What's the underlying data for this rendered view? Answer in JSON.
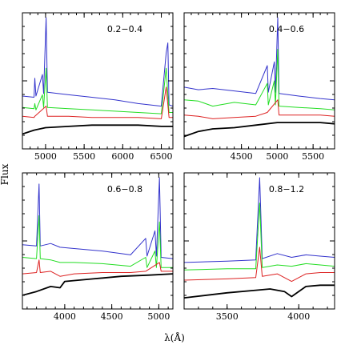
{
  "figure": {
    "ylabel": "Flux",
    "xlabel": "λ(Å)"
  },
  "chart_data": [
    {
      "type": "line",
      "label": "0.2−0.4",
      "xlim": [
        4700,
        6650
      ],
      "ylim": [
        0,
        1
      ],
      "xticks": [
        5000,
        5500,
        6000,
        6500
      ],
      "grid": false,
      "series": [
        {
          "color": "#3333cc",
          "points": [
            [
              4700,
              0.38
            ],
            [
              4850,
              0.37
            ],
            [
              4861,
              0.52
            ],
            [
              4875,
              0.38
            ],
            [
              4959,
              0.55
            ],
            [
              4975,
              0.4
            ],
            [
              5007,
              1.0
            ],
            [
              5025,
              0.41
            ],
            [
              5300,
              0.39
            ],
            [
              5600,
              0.37
            ],
            [
              5900,
              0.35
            ],
            [
              6200,
              0.32
            ],
            [
              6500,
              0.3
            ],
            [
              6563,
              0.72
            ],
            [
              6585,
              0.8
            ],
            [
              6600,
              0.31
            ],
            [
              6650,
              0.3
            ]
          ]
        },
        {
          "color": "#22dd22",
          "points": [
            [
              4700,
              0.29
            ],
            [
              4850,
              0.28
            ],
            [
              4861,
              0.32
            ],
            [
              4875,
              0.27
            ],
            [
              4959,
              0.39
            ],
            [
              4975,
              0.29
            ],
            [
              5007,
              0.6
            ],
            [
              5025,
              0.29
            ],
            [
              5300,
              0.28
            ],
            [
              5600,
              0.27
            ],
            [
              5900,
              0.26
            ],
            [
              6200,
              0.25
            ],
            [
              6500,
              0.24
            ],
            [
              6563,
              0.6
            ],
            [
              6600,
              0.25
            ],
            [
              6650,
              0.25
            ]
          ]
        },
        {
          "color": "#dd2222",
          "points": [
            [
              4700,
              0.22
            ],
            [
              4850,
              0.21
            ],
            [
              4861,
              0.22
            ],
            [
              5007,
              0.3
            ],
            [
              5025,
              0.22
            ],
            [
              5300,
              0.22
            ],
            [
              5600,
              0.21
            ],
            [
              5900,
              0.21
            ],
            [
              6200,
              0.21
            ],
            [
              6500,
              0.2
            ],
            [
              6563,
              0.45
            ],
            [
              6600,
              0.21
            ],
            [
              6650,
              0.21
            ]
          ]
        },
        {
          "color": "#000000",
          "points": [
            [
              4700,
              0.08
            ],
            [
              4850,
              0.11
            ],
            [
              5000,
              0.13
            ],
            [
              5300,
              0.14
            ],
            [
              5600,
              0.15
            ],
            [
              5900,
              0.15
            ],
            [
              6200,
              0.15
            ],
            [
              6500,
              0.14
            ],
            [
              6650,
              0.14
            ]
          ]
        }
      ]
    },
    {
      "type": "line",
      "label": "0.4−0.6",
      "xlim": [
        3700,
        5800
      ],
      "ylim": [
        0,
        1
      ],
      "xticks": [
        4500,
        5000,
        5500
      ],
      "grid": false,
      "series": [
        {
          "color": "#3333cc",
          "points": [
            [
              3700,
              0.45
            ],
            [
              3900,
              0.43
            ],
            [
              4100,
              0.44
            ],
            [
              4400,
              0.42
            ],
            [
              4700,
              0.4
            ],
            [
              4861,
              0.62
            ],
            [
              4875,
              0.41
            ],
            [
              4959,
              0.65
            ],
            [
              4975,
              0.41
            ],
            [
              5007,
              1.0
            ],
            [
              5025,
              0.4
            ],
            [
              5300,
              0.38
            ],
            [
              5600,
              0.36
            ],
            [
              5800,
              0.35
            ]
          ]
        },
        {
          "color": "#22dd22",
          "points": [
            [
              3700,
              0.35
            ],
            [
              3900,
              0.34
            ],
            [
              4100,
              0.3
            ],
            [
              4400,
              0.33
            ],
            [
              4700,
              0.31
            ],
            [
              4861,
              0.48
            ],
            [
              4875,
              0.31
            ],
            [
              4959,
              0.5
            ],
            [
              4975,
              0.31
            ],
            [
              5007,
              0.75
            ],
            [
              5025,
              0.3
            ],
            [
              5300,
              0.29
            ],
            [
              5600,
              0.28
            ],
            [
              5800,
              0.27
            ]
          ]
        },
        {
          "color": "#dd2222",
          "points": [
            [
              3700,
              0.23
            ],
            [
              3900,
              0.22
            ],
            [
              4100,
              0.2
            ],
            [
              4400,
              0.21
            ],
            [
              4700,
              0.22
            ],
            [
              4861,
              0.25
            ],
            [
              5007,
              0.35
            ],
            [
              5025,
              0.23
            ],
            [
              5300,
              0.23
            ],
            [
              5600,
              0.23
            ],
            [
              5800,
              0.22
            ]
          ]
        },
        {
          "color": "#000000",
          "points": [
            [
              3700,
              0.06
            ],
            [
              3900,
              0.1
            ],
            [
              4100,
              0.12
            ],
            [
              4400,
              0.13
            ],
            [
              4700,
              0.15
            ],
            [
              5000,
              0.17
            ],
            [
              5300,
              0.17
            ],
            [
              5600,
              0.17
            ],
            [
              5800,
              0.16
            ]
          ]
        }
      ]
    },
    {
      "type": "line",
      "label": "0.6−0.8",
      "xlim": [
        3550,
        5150
      ],
      "ylim": [
        0,
        1
      ],
      "xticks": [
        4000,
        4500,
        5000
      ],
      "grid": false,
      "series": [
        {
          "color": "#3333cc",
          "points": [
            [
              3550,
              0.47
            ],
            [
              3700,
              0.46
            ],
            [
              3727,
              0.95
            ],
            [
              3740,
              0.46
            ],
            [
              3850,
              0.48
            ],
            [
              3950,
              0.45
            ],
            [
              4100,
              0.44
            ],
            [
              4400,
              0.42
            ],
            [
              4700,
              0.39
            ],
            [
              4861,
              0.52
            ],
            [
              4875,
              0.38
            ],
            [
              4959,
              0.58
            ],
            [
              4975,
              0.38
            ],
            [
              5007,
              1.0
            ],
            [
              5025,
              0.37
            ],
            [
              5150,
              0.36
            ]
          ]
        },
        {
          "color": "#22dd22",
          "points": [
            [
              3550,
              0.37
            ],
            [
              3700,
              0.36
            ],
            [
              3727,
              0.7
            ],
            [
              3740,
              0.36
            ],
            [
              3850,
              0.35
            ],
            [
              3950,
              0.33
            ],
            [
              4100,
              0.33
            ],
            [
              4400,
              0.32
            ],
            [
              4700,
              0.3
            ],
            [
              4861,
              0.37
            ],
            [
              4875,
              0.29
            ],
            [
              4959,
              0.42
            ],
            [
              4975,
              0.29
            ],
            [
              5007,
              0.65
            ],
            [
              5025,
              0.29
            ],
            [
              5150,
              0.29
            ]
          ]
        },
        {
          "color": "#dd2222",
          "points": [
            [
              3550,
              0.24
            ],
            [
              3700,
              0.25
            ],
            [
              3727,
              0.35
            ],
            [
              3740,
              0.25
            ],
            [
              3850,
              0.26
            ],
            [
              3950,
              0.22
            ],
            [
              4100,
              0.24
            ],
            [
              4400,
              0.25
            ],
            [
              4700,
              0.25
            ],
            [
              4861,
              0.26
            ],
            [
              5007,
              0.33
            ],
            [
              5025,
              0.26
            ],
            [
              5150,
              0.26
            ]
          ]
        },
        {
          "color": "#000000",
          "points": [
            [
              3550,
              0.07
            ],
            [
              3700,
              0.1
            ],
            [
              3850,
              0.14
            ],
            [
              3950,
              0.13
            ],
            [
              4000,
              0.18
            ],
            [
              4300,
              0.2
            ],
            [
              4600,
              0.22
            ],
            [
              4900,
              0.23
            ],
            [
              5150,
              0.24
            ]
          ]
        }
      ]
    },
    {
      "type": "line",
      "label": "0.8−1.2",
      "xlim": [
        3200,
        4250
      ],
      "ylim": [
        0,
        1
      ],
      "xticks": [
        3500,
        4000
      ],
      "grid": false,
      "series": [
        {
          "color": "#3333cc",
          "points": [
            [
              3200,
              0.33
            ],
            [
              3500,
              0.34
            ],
            [
              3700,
              0.35
            ],
            [
              3727,
              1.0
            ],
            [
              3745,
              0.36
            ],
            [
              3850,
              0.4
            ],
            [
              3950,
              0.37
            ],
            [
              4050,
              0.39
            ],
            [
              4150,
              0.38
            ],
            [
              4250,
              0.37
            ]
          ]
        },
        {
          "color": "#22dd22",
          "points": [
            [
              3200,
              0.27
            ],
            [
              3500,
              0.28
            ],
            [
              3700,
              0.28
            ],
            [
              3727,
              0.8
            ],
            [
              3745,
              0.29
            ],
            [
              3850,
              0.31
            ],
            [
              3950,
              0.3
            ],
            [
              4050,
              0.32
            ],
            [
              4150,
              0.31
            ],
            [
              4250,
              0.3
            ]
          ]
        },
        {
          "color": "#dd2222",
          "points": [
            [
              3200,
              0.19
            ],
            [
              3500,
              0.2
            ],
            [
              3700,
              0.21
            ],
            [
              3727,
              0.45
            ],
            [
              3745,
              0.22
            ],
            [
              3850,
              0.24
            ],
            [
              3950,
              0.18
            ],
            [
              4050,
              0.24
            ],
            [
              4150,
              0.25
            ],
            [
              4250,
              0.25
            ]
          ]
        },
        {
          "color": "#000000",
          "points": [
            [
              3200,
              0.05
            ],
            [
              3500,
              0.09
            ],
            [
              3700,
              0.11
            ],
            [
              3800,
              0.12
            ],
            [
              3900,
              0.1
            ],
            [
              3950,
              0.06
            ],
            [
              4050,
              0.14
            ],
            [
              4150,
              0.15
            ],
            [
              4250,
              0.15
            ]
          ]
        }
      ]
    }
  ]
}
